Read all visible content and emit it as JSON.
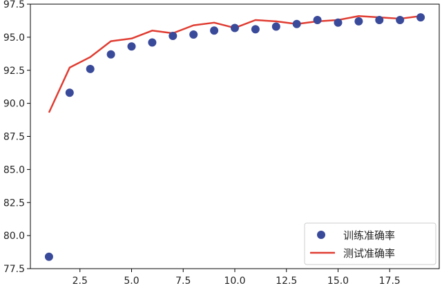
{
  "chart_data": {
    "type": "line",
    "title": "",
    "xlabel": "",
    "ylabel": "",
    "xlim": [
      0.1,
      19.9
    ],
    "ylim": [
      77.5,
      97.5
    ],
    "x_ticks": [
      2.5,
      5.0,
      7.5,
      10.0,
      12.5,
      15.0,
      17.5
    ],
    "x_tick_labels": [
      "2.5",
      "5.0",
      "7.5",
      "10.0",
      "12.5",
      "15.0",
      "17.5"
    ],
    "y_ticks": [
      77.5,
      80.0,
      82.5,
      85.0,
      87.5,
      90.0,
      92.5,
      95.0,
      97.5
    ],
    "y_tick_labels": [
      "77.5",
      "80.0",
      "82.5",
      "85.0",
      "87.5",
      "90.0",
      "92.5",
      "95.0",
      "97.5"
    ],
    "grid": false,
    "legend_position": "bottom-right",
    "series": [
      {
        "name": "训练准确率",
        "kind": "scatter",
        "color": "#3a4a9a",
        "x": [
          1,
          2,
          3,
          4,
          5,
          6,
          7,
          8,
          9,
          10,
          11,
          12,
          13,
          14,
          15,
          16,
          17,
          18,
          19
        ],
        "values": [
          78.4,
          90.8,
          92.6,
          93.7,
          94.3,
          94.6,
          95.1,
          95.2,
          95.5,
          95.7,
          95.6,
          95.8,
          96.0,
          96.3,
          96.1,
          96.2,
          96.3,
          96.3,
          96.5
        ]
      },
      {
        "name": "测试准确率",
        "kind": "line",
        "color": "#e03c31",
        "x": [
          1,
          2,
          3,
          4,
          5,
          6,
          7,
          8,
          9,
          10,
          11,
          12,
          13,
          14,
          15,
          16,
          17,
          18,
          19
        ],
        "values": [
          89.3,
          92.7,
          93.5,
          94.7,
          94.9,
          95.5,
          95.3,
          95.9,
          96.1,
          95.7,
          96.3,
          96.2,
          96.0,
          96.2,
          96.3,
          96.6,
          96.5,
          96.4,
          96.6
        ]
      }
    ]
  }
}
